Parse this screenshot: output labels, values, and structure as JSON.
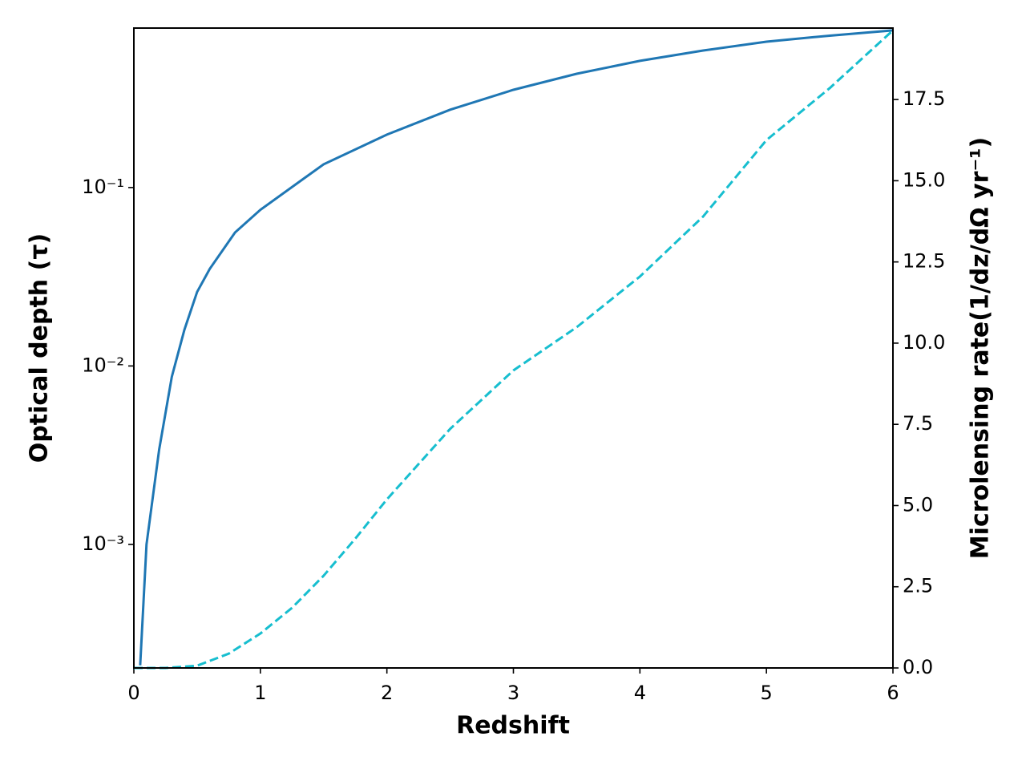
{
  "chart_data": {
    "type": "line",
    "xlabel": "Redshift",
    "ylabel": "Optical depth (τ)",
    "y2label": "Microlensing rate(1/dz/dΩ yr⁻¹)",
    "xlim": [
      0,
      6
    ],
    "xticks": [
      0,
      1,
      2,
      3,
      4,
      5,
      6
    ],
    "ylim": [
      0.000203,
      0.783
    ],
    "yscale": "log",
    "yticks": [
      {
        "value": 0.001,
        "label": "10⁻³"
      },
      {
        "value": 0.01,
        "label": "10⁻²"
      },
      {
        "value": 0.1,
        "label": "10⁻¹"
      }
    ],
    "y2lim": [
      0,
      19.7
    ],
    "y2ticks": [
      {
        "value": 0,
        "label": "0.0"
      },
      2.5,
      {
        "value": 5,
        "label": "5.0"
      },
      7.5,
      {
        "value": 10,
        "label": "10.0"
      },
      12.5,
      {
        "value": 15,
        "label": "15.0"
      },
      17.5
    ],
    "series": [
      {
        "color": "#1f77b4",
        "linestyle": "solid",
        "x": [
          0.05,
          0.1,
          0.2,
          0.3,
          0.4,
          0.5,
          0.6,
          0.8,
          1.0,
          1.5,
          2,
          2.5,
          3,
          3.5,
          4,
          4.5,
          5,
          5.5,
          6
        ],
        "values": [
          0.00021,
          0.001,
          0.0034,
          0.0087,
          0.016,
          0.026,
          0.035,
          0.056,
          0.075,
          0.135,
          0.198,
          0.273,
          0.353,
          0.434,
          0.513,
          0.586,
          0.657,
          0.71,
          0.76
        ]
      },
      {
        "color": "#17becf",
        "linestyle": "dashed",
        "axis": "y2",
        "x": [
          0,
          0.25,
          0.5,
          0.75,
          1,
          1.25,
          1.5,
          1.75,
          2,
          2.5,
          3,
          3.5,
          4,
          4.5,
          5,
          5.5,
          6
        ],
        "values": [
          0,
          0,
          0.07,
          0.44,
          1.06,
          1.85,
          2.84,
          3.98,
          5.19,
          7.36,
          9.16,
          10.49,
          12.05,
          13.9,
          16.25,
          17.85,
          19.63
        ]
      }
    ]
  }
}
